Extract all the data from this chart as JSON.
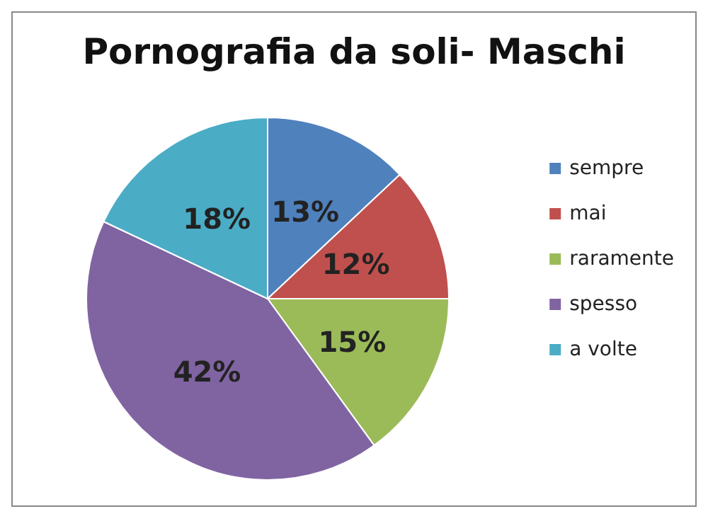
{
  "chart_data": {
    "type": "pie",
    "title": "Pornografia da soli- Maschi",
    "categories": [
      "sempre",
      "mai",
      "raramente",
      "spesso",
      "a volte"
    ],
    "values": [
      13,
      12,
      15,
      42,
      18
    ],
    "value_labels": [
      "13%",
      "12%",
      "15%",
      "42%",
      "18%"
    ],
    "colors": [
      "#4f81bd",
      "#c0504d",
      "#9bbb59",
      "#8064a2",
      "#4bacc6"
    ],
    "legend": "right"
  }
}
